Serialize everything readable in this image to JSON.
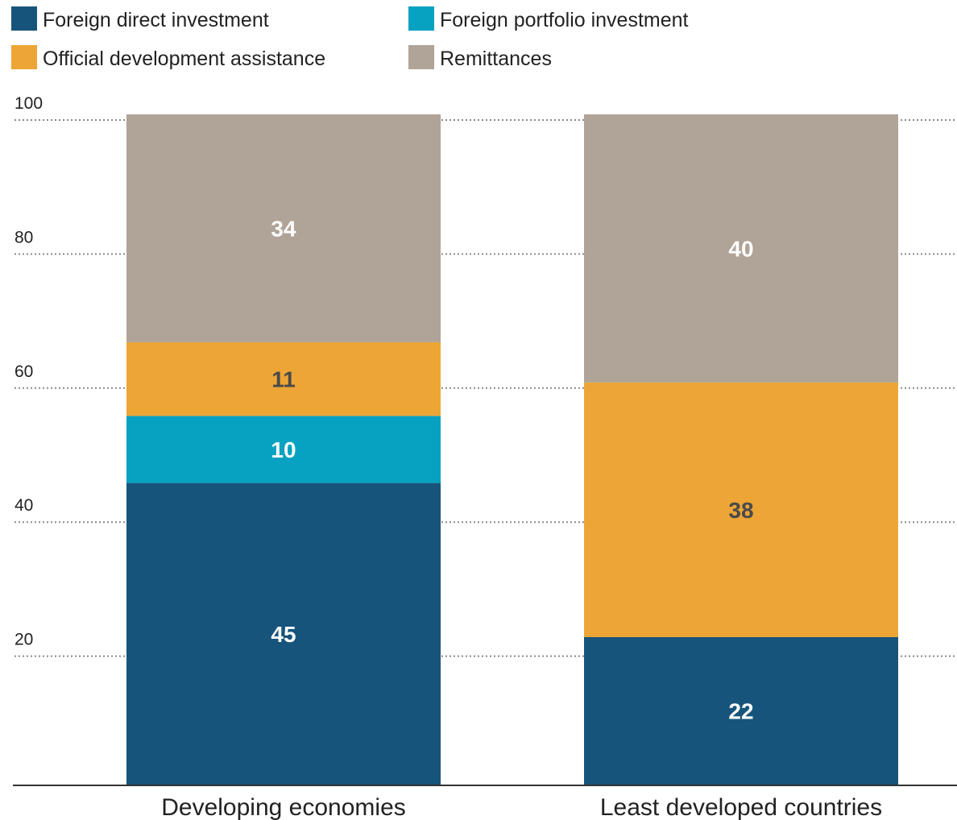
{
  "chart_data": {
    "type": "bar",
    "stacked": true,
    "title": "",
    "xlabel": "",
    "ylabel": "",
    "ylim": [
      0,
      100
    ],
    "yticks": [
      20,
      40,
      60,
      80,
      100
    ],
    "grid": "dotted horizontal",
    "legend_position": "top",
    "categories": [
      "Developing economies",
      "Least developed countries"
    ],
    "series": [
      {
        "name": "Foreign direct investment",
        "color": "#17547B",
        "label_color": "#FFFFFF",
        "values": [
          45,
          22
        ]
      },
      {
        "name": "Foreign portfolio investment",
        "color": "#07A2C1",
        "label_color": "#FFFFFF",
        "values": [
          10,
          null
        ]
      },
      {
        "name": "Official development assistance",
        "color": "#EDA536",
        "label_color": "#4A4A4A",
        "values": [
          11,
          38
        ]
      },
      {
        "name": "Remittances",
        "color": "#B0A397",
        "label_color": "#FFFFFF",
        "values": [
          34,
          40
        ]
      }
    ]
  },
  "legend_order": [
    0,
    1,
    2,
    3
  ]
}
